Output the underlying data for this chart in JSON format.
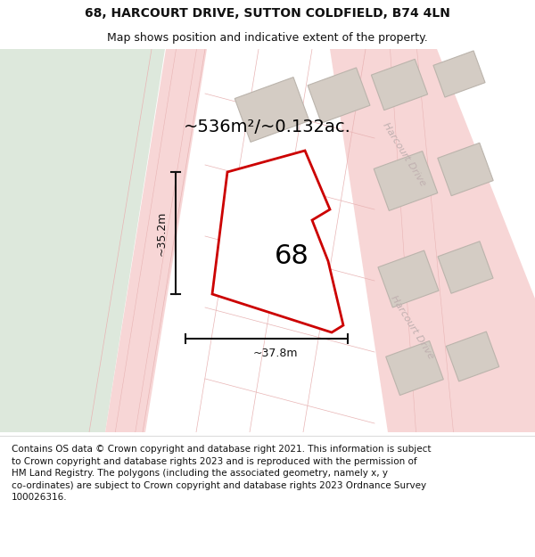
{
  "title": "68, HARCOURT DRIVE, SUTTON COLDFIELD, B74 4LN",
  "subtitle": "Map shows position and indicative extent of the property.",
  "footer_lines": [
    "Contains OS data © Crown copyright and database right 2021. This information is subject to Crown copyright and database rights 2023 and is reproduced with the permission of",
    "HM Land Registry. The polygons (including the associated geometry, namely x, y co-ordinates) are subject to Crown copyright and database rights 2023 Ordnance Survey",
    "100026316."
  ],
  "area_label": "~536m²/~0.132ac.",
  "plot_number": "68",
  "dim_width": "~37.8m",
  "dim_height": "~35.2m",
  "road_label": "Harcourt Drive",
  "map_bg": "#f2ede6",
  "green_color": "#dde8dc",
  "road_fill": "#f7d6d6",
  "road_line": "#e8b4b4",
  "sidewalk_color": "#ede8e0",
  "building_fill": "#d4ccc4",
  "building_outline": "#bbb4ac",
  "plot_fill": "#ffffff",
  "plot_outline": "#cc0000",
  "plot_lw": 2.0,
  "dim_color": "#111111",
  "road_text_color": "#c0b0b0",
  "title_color": "#111111",
  "footer_color": "#111111",
  "title_fontsize": 10,
  "subtitle_fontsize": 9,
  "footer_fontsize": 7.5,
  "area_fontsize": 14,
  "plot_num_fontsize": 22,
  "dim_fontsize": 9
}
